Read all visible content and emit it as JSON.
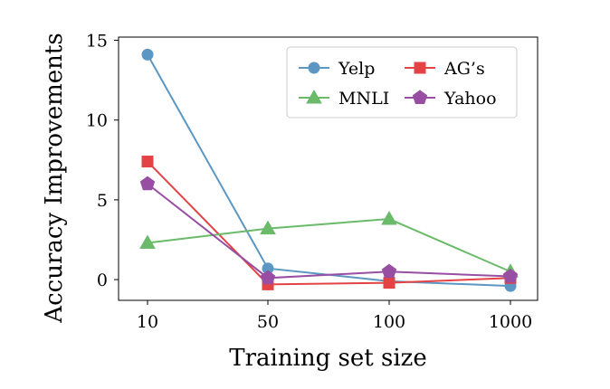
{
  "chart_data": {
    "type": "line",
    "title": "",
    "xlabel": "Training set size",
    "ylabel": "Accuracy Improvements",
    "categories": [
      "10",
      "50",
      "100",
      "1000"
    ],
    "ylim": [
      -1.3,
      15.2
    ],
    "yticks": [
      "0",
      "5",
      "10",
      "15"
    ],
    "grid": false,
    "legend": {
      "placement": "top-right",
      "columns": 2
    },
    "series": [
      {
        "name": "Yelp",
        "values": [
          14.1,
          0.7,
          -0.1,
          -0.4
        ],
        "color": "#5b97c2",
        "marker": "circle"
      },
      {
        "name": "AG’s",
        "values": [
          7.4,
          -0.3,
          -0.2,
          0.1
        ],
        "color": "#e34345",
        "marker": "square"
      },
      {
        "name": "MNLI",
        "values": [
          2.3,
          3.2,
          3.8,
          0.5
        ],
        "color": "#6aba6a",
        "marker": "triangle"
      },
      {
        "name": "Yahoo",
        "values": [
          6.0,
          0.1,
          0.5,
          0.2
        ],
        "color": "#984ea3",
        "marker": "pentagon"
      }
    ]
  }
}
